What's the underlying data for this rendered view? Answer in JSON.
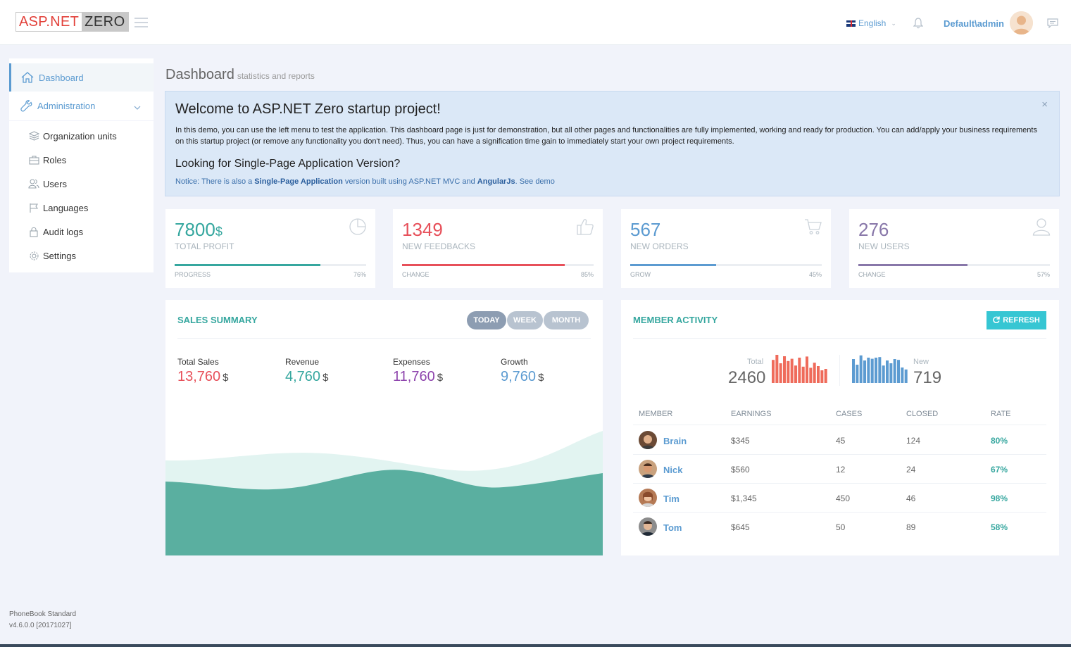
{
  "header": {
    "logo_left": "ASP.NET",
    "logo_right": "ZERO",
    "language": "English",
    "username": "Default\\admin"
  },
  "sidebar": {
    "dashboard": "Dashboard",
    "administration": "Administration",
    "items": [
      {
        "label": "Organization units"
      },
      {
        "label": "Roles"
      },
      {
        "label": "Users"
      },
      {
        "label": "Languages"
      },
      {
        "label": "Audit logs"
      },
      {
        "label": "Settings"
      }
    ]
  },
  "page": {
    "title": "Dashboard",
    "subtitle": "statistics and reports"
  },
  "alert": {
    "title": "Welcome to ASP.NET Zero startup project!",
    "body": "In this demo, you can use the left menu to test the application. This dashboard page is just for demonstration, but all other pages and functionalities are fully implemented, working and ready for production. You can add/apply your business requirements on this startup project (or remove any functionality you don't need). Thus, you can have a signification time gain to immediately start your own project requirements.",
    "subtitle": "Looking for Single-Page Application Version?",
    "notice_pre": "Notice: There is also a ",
    "notice_link1": "Single-Page Application",
    "notice_mid": " version built using ASP.NET MVC and ",
    "notice_link2": "AngularJs",
    "notice_post": ". See demo",
    "close": "×"
  },
  "stats": [
    {
      "value": "7800",
      "currency": "$",
      "label": "TOTAL PROFIT",
      "sub": "PROGRESS",
      "percent": "76%",
      "progress": 0.76,
      "color": "#36a79f"
    },
    {
      "value": "1349",
      "currency": "",
      "label": "NEW FEEDBACKS",
      "sub": "CHANGE",
      "percent": "85%",
      "progress": 0.85,
      "color": "#e7505a"
    },
    {
      "value": "567",
      "currency": "",
      "label": "NEW ORDERS",
      "sub": "GROW",
      "percent": "45%",
      "progress": 0.45,
      "color": "#5c9bd1"
    },
    {
      "value": "276",
      "currency": "",
      "label": "NEW USERS",
      "sub": "CHANGE",
      "percent": "57%",
      "progress": 0.57,
      "color": "#8877a9"
    }
  ],
  "sales": {
    "title": "Sales Summary",
    "buttons": [
      "Today",
      "Week",
      "Month"
    ],
    "metrics": [
      {
        "label": "Total Sales",
        "value": "13,760",
        "currency": "$",
        "color": "#e7505a"
      },
      {
        "label": "Revenue",
        "value": "4,760",
        "currency": "$",
        "color": "#36a79f"
      },
      {
        "label": "Expenses",
        "value": "11,760",
        "currency": "$",
        "color": "#8e44ad"
      },
      {
        "label": "Growth",
        "value": "9,760",
        "currency": "$",
        "color": "#5c9bd1"
      }
    ]
  },
  "member": {
    "title": "Member Activity",
    "refresh": "Refresh",
    "total_label": "Total",
    "total_value": "2460",
    "new_label": "New",
    "new_value": "719",
    "total_bars": [
      0.82,
      1.0,
      0.7,
      0.95,
      0.78,
      0.86,
      0.62,
      0.9,
      0.58,
      0.94,
      0.54,
      0.72,
      0.6,
      0.45,
      0.5
    ],
    "new_bars": [
      0.85,
      0.65,
      0.98,
      0.8,
      0.9,
      0.86,
      0.9,
      0.92,
      0.62,
      0.8,
      0.7,
      0.85,
      0.82,
      0.55,
      0.48
    ],
    "columns": [
      "Member",
      "Earnings",
      "Cases",
      "Closed",
      "Rate"
    ],
    "rows": [
      {
        "name": "Brain",
        "earnings": "$345",
        "cases": "45",
        "closed": "124",
        "rate": "80%"
      },
      {
        "name": "Nick",
        "earnings": "$560",
        "cases": "12",
        "closed": "24",
        "rate": "67%"
      },
      {
        "name": "Tim",
        "earnings": "$1,345",
        "cases": "450",
        "closed": "46",
        "rate": "98%"
      },
      {
        "name": "Tom",
        "earnings": "$645",
        "cases": "50",
        "closed": "89",
        "rate": "58%"
      }
    ]
  },
  "footer": {
    "app": "PhoneBook Standard",
    "version": "v4.6.0.0 [20171027]"
  },
  "colors": {
    "accent": "#5b9bd1",
    "teal": "#36a79f"
  }
}
